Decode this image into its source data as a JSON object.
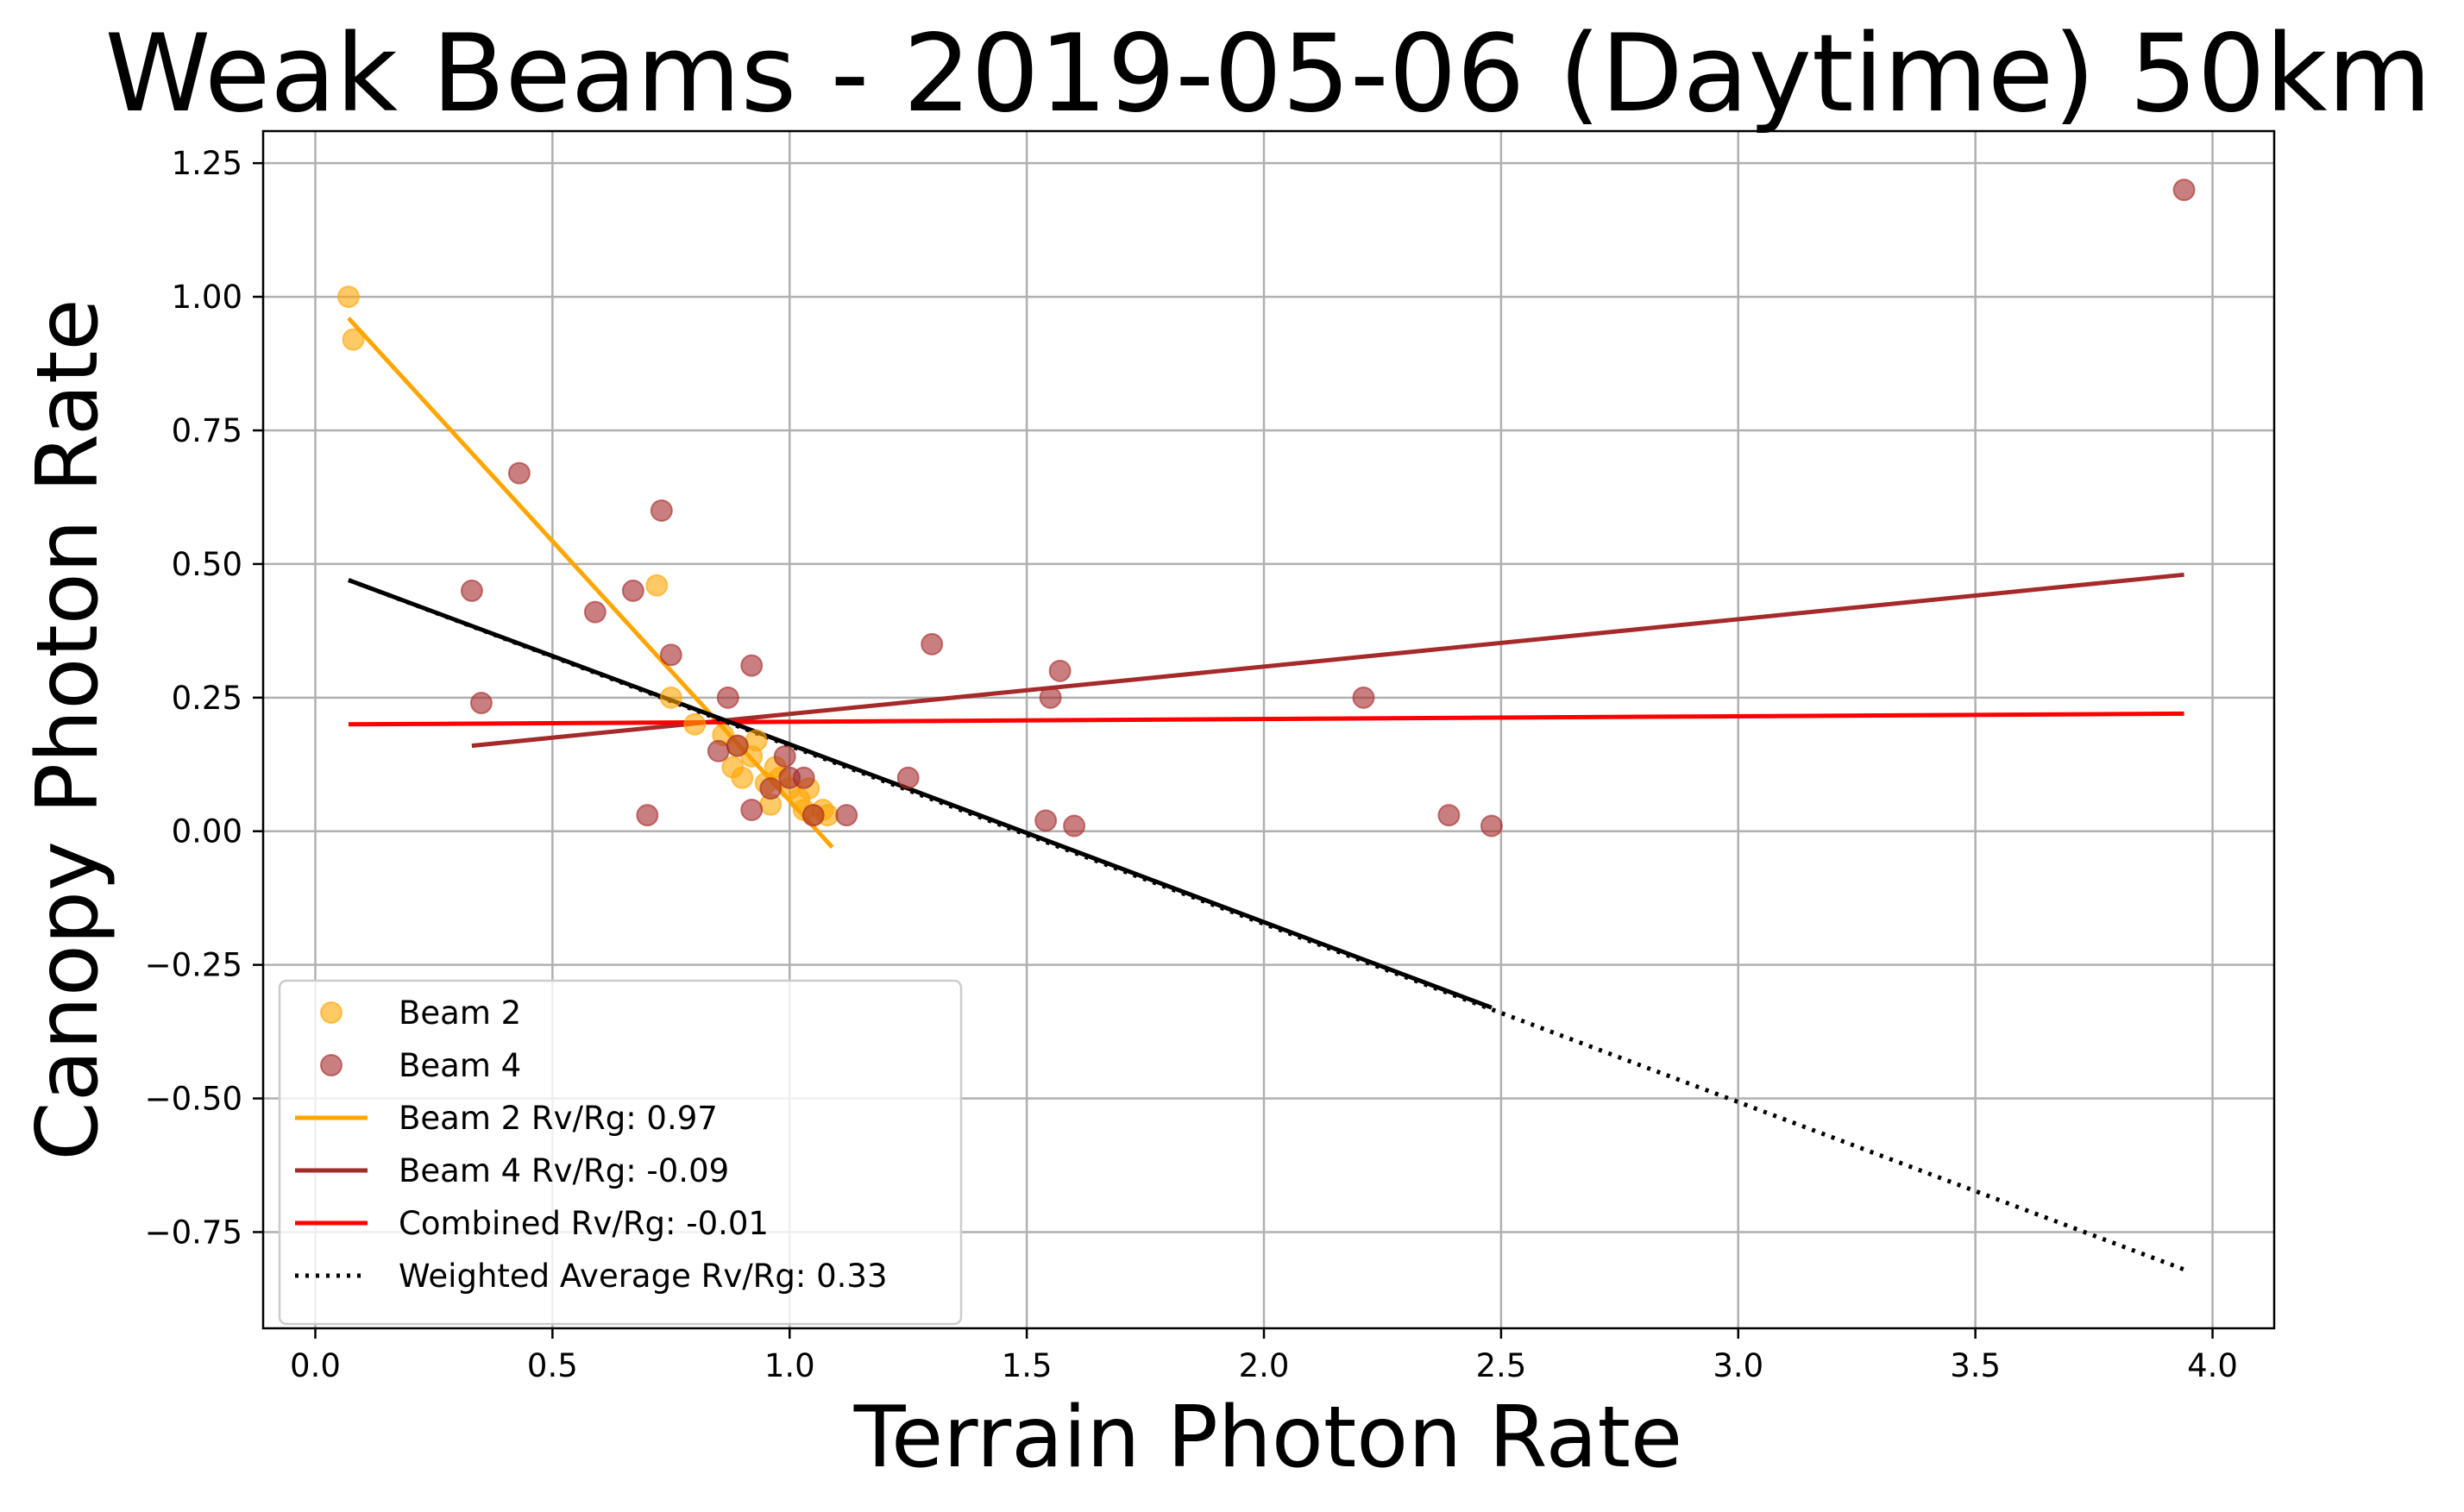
{
  "chart_data": {
    "type": "scatter",
    "title": "Weak Beams - 2019-05-06 (Daytime) 50km",
    "xlabel": "Terrain Photon Rate",
    "ylabel": "Canopy Photon Rate",
    "xlim": [
      -0.11,
      4.13
    ],
    "ylim": [
      -0.93,
      1.31
    ],
    "xticks": [
      0.0,
      0.5,
      1.0,
      1.5,
      2.0,
      2.5,
      3.0,
      3.5,
      4.0
    ],
    "xtick_labels": [
      "0.0",
      "0.5",
      "1.0",
      "1.5",
      "2.0",
      "2.5",
      "3.0",
      "3.5",
      "4.0"
    ],
    "yticks": [
      -0.75,
      -0.5,
      -0.25,
      0.0,
      0.25,
      0.5,
      0.75,
      1.0,
      1.25
    ],
    "ytick_labels": [
      "−0.75",
      "−0.50",
      "−0.25",
      "0.00",
      "0.25",
      "0.50",
      "0.75",
      "1.00",
      "1.25"
    ],
    "grid": true,
    "legend_position": "bottom-left",
    "scatter_series": [
      {
        "name": "Beam 2",
        "color": "#ffa500",
        "alpha": 0.6,
        "points": [
          [
            0.07,
            1.0
          ],
          [
            0.08,
            0.92
          ],
          [
            0.72,
            0.46
          ],
          [
            0.75,
            0.25
          ],
          [
            0.8,
            0.2
          ],
          [
            0.86,
            0.18
          ],
          [
            0.88,
            0.12
          ],
          [
            0.89,
            0.16
          ],
          [
            0.9,
            0.1
          ],
          [
            0.92,
            0.14
          ],
          [
            0.93,
            0.17
          ],
          [
            0.95,
            0.09
          ],
          [
            0.96,
            0.05
          ],
          [
            0.97,
            0.12
          ],
          [
            0.98,
            0.1
          ],
          [
            1.0,
            0.08
          ],
          [
            1.02,
            0.06
          ],
          [
            1.03,
            0.04
          ],
          [
            1.04,
            0.08
          ],
          [
            1.05,
            0.03
          ],
          [
            1.07,
            0.04
          ],
          [
            1.08,
            0.03
          ]
        ]
      },
      {
        "name": "Beam 4",
        "color": "#a52a2a",
        "alpha": 0.6,
        "points": [
          [
            0.33,
            0.45
          ],
          [
            0.35,
            0.24
          ],
          [
            0.43,
            0.67
          ],
          [
            0.59,
            0.41
          ],
          [
            0.67,
            0.45
          ],
          [
            0.7,
            0.03
          ],
          [
            0.73,
            0.6
          ],
          [
            0.75,
            0.33
          ],
          [
            0.85,
            0.15
          ],
          [
            0.87,
            0.25
          ],
          [
            0.89,
            0.16
          ],
          [
            0.92,
            0.31
          ],
          [
            0.92,
            0.04
          ],
          [
            0.96,
            0.08
          ],
          [
            0.99,
            0.14
          ],
          [
            1.0,
            0.1
          ],
          [
            1.03,
            0.1
          ],
          [
            1.05,
            0.03
          ],
          [
            1.12,
            0.03
          ],
          [
            1.25,
            0.1
          ],
          [
            1.3,
            0.35
          ],
          [
            1.54,
            0.02
          ],
          [
            1.55,
            0.25
          ],
          [
            1.57,
            0.3
          ],
          [
            1.6,
            0.01
          ],
          [
            2.21,
            0.25
          ],
          [
            2.39,
            0.03
          ],
          [
            2.48,
            0.01
          ],
          [
            3.94,
            1.2
          ]
        ]
      }
    ],
    "line_series": [
      {
        "name": "Beam 2 Rv/Rg: 0.97",
        "color": "#ffa500",
        "style": "solid",
        "x": [
          0.07,
          1.09
        ],
        "y": [
          0.96,
          -0.03
        ]
      },
      {
        "name": "Beam 4 Rv/Rg: -0.09",
        "color": "#a52a2a",
        "style": "solid",
        "x": [
          0.33,
          3.94
        ],
        "y": [
          0.16,
          0.48
        ]
      },
      {
        "name": "Combined Rv/Rg: -0.01",
        "color": "#ff0000",
        "style": "solid",
        "x": [
          0.07,
          3.94
        ],
        "y": [
          0.2,
          0.22
        ]
      },
      {
        "name": "Weighted Average Rv/Rg: 0.33",
        "color": "#000000",
        "style": "dotted",
        "x": [
          0.07,
          3.94
        ],
        "y": [
          0.47,
          -0.82
        ]
      }
    ],
    "extra_lines": [
      {
        "color": "#000000",
        "style": "solid",
        "x": [
          0.07,
          1.25
        ],
        "y": [
          0.47,
          0.08
        ]
      },
      {
        "color": "#000000",
        "style": "solid",
        "x": [
          1.25,
          2.48
        ],
        "y": [
          0.08,
          -0.33
        ]
      }
    ],
    "legend": [
      {
        "label": "Beam 2",
        "kind": "marker",
        "color": "#ffa500"
      },
      {
        "label": "Beam 4",
        "kind": "marker",
        "color": "#a52a2a"
      },
      {
        "label": "Beam 2 Rv/Rg: 0.97",
        "kind": "line",
        "color": "#ffa500"
      },
      {
        "label": "Beam 4 Rv/Rg: -0.09",
        "kind": "line",
        "color": "#a52a2a"
      },
      {
        "label": "Combined Rv/Rg: -0.01",
        "kind": "line",
        "color": "#ff0000"
      },
      {
        "label": "Weighted Average Rv/Rg: 0.33",
        "kind": "dotted",
        "color": "#000000"
      }
    ]
  }
}
